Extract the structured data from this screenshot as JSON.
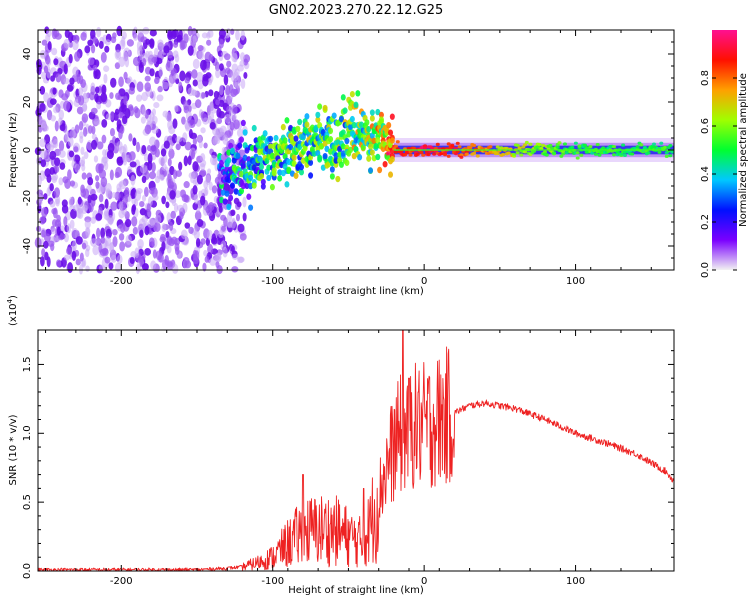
{
  "title": "GN02.2023.270.22.12.G25",
  "chart_data": [
    {
      "type": "heatmap",
      "xlabel": "Height of straight line (km)",
      "ylabel": "Frequency (Hz)",
      "xlim": [
        -255,
        165
      ],
      "ylim": [
        -50,
        50
      ],
      "xticks": [
        -200,
        -100,
        0,
        100
      ],
      "yticks": [
        -40,
        -20,
        0,
        20,
        40
      ],
      "colorbar": {
        "label": "Normalized spectral amplitude",
        "range": [
          0,
          1
        ],
        "ticks": [
          "0.0",
          "0.2",
          "0.4",
          "0.6",
          "0.8"
        ],
        "colors": [
          "#f2f2f2",
          "#7a00ff",
          "#0010ff",
          "#00c8ff",
          "#00ff30",
          "#a0ff00",
          "#ffa000",
          "#ff1000",
          "#ff1090"
        ]
      },
      "ridge": {
        "x": [
          -135,
          -120,
          -110,
          -100,
          -90,
          -80,
          -70,
          -60,
          -50,
          -45,
          -40,
          -30,
          -25,
          -20,
          -10,
          0,
          20,
          50,
          100,
          165
        ],
        "y": [
          -10,
          -8,
          -5,
          -1,
          0,
          2,
          4,
          3,
          7,
          8,
          6,
          4,
          2,
          0,
          0,
          0,
          0,
          0,
          0,
          0
        ],
        "amplitude": [
          0.3,
          0.35,
          0.4,
          0.45,
          0.45,
          0.5,
          0.45,
          0.5,
          0.5,
          0.55,
          0.55,
          0.6,
          0.7,
          0.85,
          0.85,
          0.9,
          0.85,
          0.7,
          0.5,
          0.5
        ]
      }
    },
    {
      "type": "line",
      "xlabel": "Height of straight line (km)",
      "ylabel": "SNR (10 * v/v)",
      "yexponent": "(x10",
      "yexponent_power": "4",
      "yexponent_close": ")",
      "xlim": [
        -255,
        165
      ],
      "ylim": [
        0,
        1.75
      ],
      "xticks": [
        -200,
        -100,
        0,
        100
      ],
      "yticks": [
        "0.0",
        "0.5",
        "1.0",
        "1.5"
      ],
      "color": "#ee2222",
      "envelope": {
        "x": [
          -255,
          -150,
          -130,
          -120,
          -110,
          -100,
          -90,
          -80,
          -70,
          -60,
          -50,
          -40,
          -35,
          -30,
          -25,
          -20,
          -15,
          -10,
          -5,
          0,
          10,
          20,
          30,
          40,
          60,
          80,
          100,
          120,
          140,
          160,
          165
        ],
        "y": [
          0.01,
          0.01,
          0.02,
          0.03,
          0.06,
          0.1,
          0.2,
          0.28,
          0.3,
          0.3,
          0.25,
          0.2,
          0.35,
          0.55,
          0.75,
          0.9,
          1.0,
          1.05,
          1.05,
          1.05,
          1.1,
          1.15,
          1.2,
          1.22,
          1.18,
          1.1,
          1.0,
          0.93,
          0.85,
          0.72,
          0.65
        ]
      },
      "peaks": [
        {
          "x": -14,
          "y": 1.75
        },
        {
          "x": -10,
          "y": 1.4
        },
        {
          "x": -4,
          "y": 1.3
        },
        {
          "x": -80,
          "y": 0.7
        },
        {
          "x": -40,
          "y": 0.6
        }
      ]
    }
  ]
}
